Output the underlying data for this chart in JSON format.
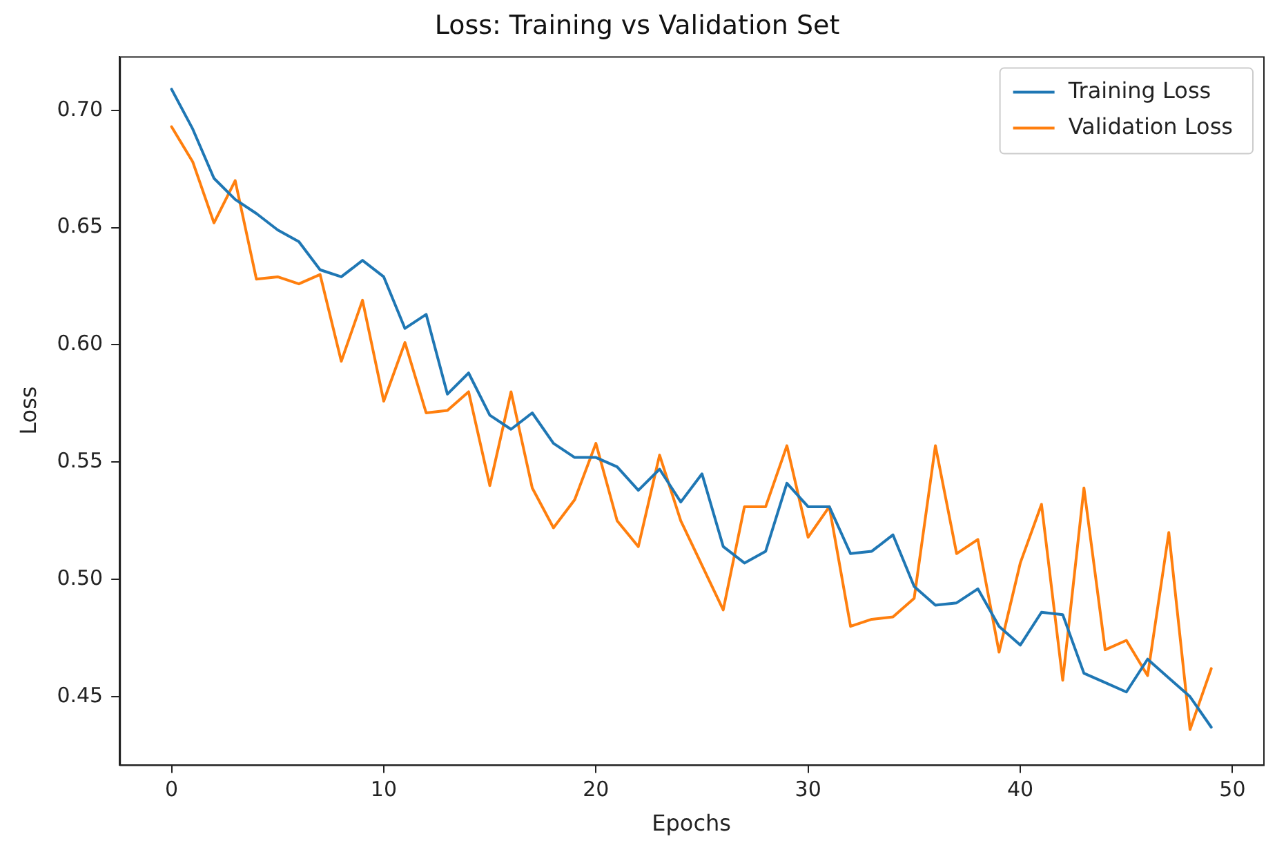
{
  "chart_data": {
    "type": "line",
    "title": "Loss: Training vs Validation Set",
    "xlabel": "Epochs",
    "ylabel": "Loss",
    "x": [
      0,
      1,
      2,
      3,
      4,
      5,
      6,
      7,
      8,
      9,
      10,
      11,
      12,
      13,
      14,
      15,
      16,
      17,
      18,
      19,
      20,
      21,
      22,
      23,
      24,
      25,
      26,
      27,
      28,
      29,
      30,
      31,
      32,
      33,
      34,
      35,
      36,
      37,
      38,
      39,
      40,
      41,
      42,
      43,
      44,
      45,
      46,
      47,
      48,
      49
    ],
    "series": [
      {
        "name": "Training Loss",
        "color": "#1f77b4",
        "values": [
          0.709,
          0.692,
          0.671,
          0.662,
          0.656,
          0.649,
          0.644,
          0.632,
          0.629,
          0.636,
          0.629,
          0.607,
          0.613,
          0.579,
          0.588,
          0.57,
          0.564,
          0.571,
          0.558,
          0.552,
          0.552,
          0.548,
          0.538,
          0.547,
          0.533,
          0.545,
          0.514,
          0.507,
          0.512,
          0.541,
          0.531,
          0.531,
          0.511,
          0.512,
          0.519,
          0.497,
          0.489,
          0.49,
          0.496,
          0.48,
          0.472,
          0.486,
          0.485,
          0.46,
          0.456,
          0.452,
          0.466,
          0.458,
          0.45,
          0.437
        ]
      },
      {
        "name": "Validation Loss",
        "color": "#ff7f0e",
        "values": [
          0.693,
          0.678,
          0.652,
          0.67,
          0.628,
          0.629,
          0.626,
          0.63,
          0.593,
          0.619,
          0.576,
          0.601,
          0.571,
          0.572,
          0.58,
          0.54,
          0.58,
          0.539,
          0.522,
          0.534,
          0.558,
          0.525,
          0.514,
          0.553,
          0.525,
          0.506,
          0.487,
          0.531,
          0.531,
          0.557,
          0.518,
          0.531,
          0.48,
          0.483,
          0.484,
          0.492,
          0.557,
          0.511,
          0.517,
          0.469,
          0.507,
          0.532,
          0.457,
          0.539,
          0.47,
          0.474,
          0.459,
          0.52,
          0.436,
          0.462
        ]
      }
    ],
    "xlim": [
      -2.45,
      51.45
    ],
    "ylim": [
      0.421,
      0.723
    ],
    "xticks": [
      0,
      10,
      20,
      30,
      40,
      50
    ],
    "yticks": [
      {
        "value": 0.45,
        "label": "0.45"
      },
      {
        "value": 0.5,
        "label": "0.50"
      },
      {
        "value": 0.55,
        "label": "0.55"
      },
      {
        "value": 0.6,
        "label": "0.60"
      },
      {
        "value": 0.65,
        "label": "0.65"
      },
      {
        "value": 0.7,
        "label": "0.70"
      }
    ],
    "grid": false,
    "legend": "top right",
    "marker": "none",
    "line_style": "solid"
  }
}
